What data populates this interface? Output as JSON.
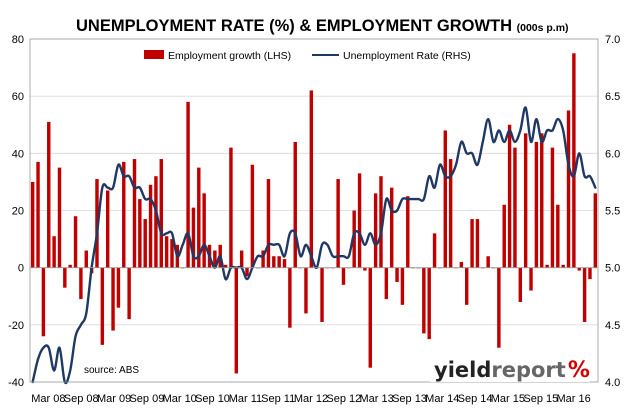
{
  "chart_data": {
    "type": "bar",
    "title": "UNEMPLOYMENT RATE (%) & EMPLOYMENT GROWTH",
    "title_suffix": "(000s p.m)",
    "source": "source: ABS",
    "legend": {
      "placement": "top-center"
    },
    "y_left": {
      "min": -40,
      "max": 80,
      "ticks": [
        "-40",
        "-20",
        "0",
        "20",
        "40",
        "60",
        "80"
      ]
    },
    "y_right": {
      "min": 4.0,
      "max": 7.0,
      "ticks": [
        "4.0",
        "4.5",
        "5.0",
        "5.5",
        "6.0",
        "6.5",
        "7.0"
      ]
    },
    "x_tick_labels": [
      "Mar 08",
      "Sep 08",
      "Mar 09",
      "Sep 09",
      "Mar 10",
      "Sep 10",
      "Mar 11",
      "Sep 11",
      "Mar 12",
      "Sep 12",
      "Mar 13",
      "Sep 13",
      "Mar 14",
      "Sep 14",
      "Mar 15",
      "Sep 15",
      "Mar 16"
    ],
    "series": [
      {
        "name": "Employment growth (LHS)",
        "type": "bar",
        "color": "#c00000",
        "values": [
          30,
          37,
          -24,
          51,
          11,
          35,
          -7,
          1,
          18,
          -11,
          6,
          -2,
          31,
          -27,
          27,
          -22,
          -14,
          37,
          -18,
          38,
          24,
          17,
          29,
          32,
          38,
          11,
          10,
          8,
          0,
          58,
          21,
          35,
          26,
          8,
          6,
          8,
          1,
          42,
          -37,
          6,
          -3,
          36,
          0,
          6,
          31,
          4,
          4,
          3,
          -21,
          44,
          0,
          -16,
          62,
          0,
          -19,
          0,
          0,
          31,
          -6,
          0,
          20,
          33,
          -1,
          -35,
          26,
          32,
          -11,
          28,
          -5,
          -13,
          25,
          0,
          0,
          -23,
          -25,
          12,
          0,
          48,
          38,
          0,
          2,
          -13,
          17,
          17,
          0,
          4,
          0,
          -28,
          22,
          50,
          42,
          -12,
          47,
          -8,
          44,
          47,
          1,
          42,
          22,
          1,
          55,
          75,
          -1,
          -19,
          -4,
          26
        ]
      },
      {
        "name": "Unemployment Rate (RHS)",
        "type": "line",
        "color": "#1f3864",
        "values": [
          4.0,
          4.2,
          4.3,
          4.3,
          4.1,
          4.3,
          4.0,
          4.1,
          4.4,
          4.5,
          4.6,
          5.0,
          5.3,
          5.7,
          5.7,
          5.7,
          5.9,
          5.8,
          5.8,
          5.7,
          5.7,
          5.6,
          5.6,
          5.5,
          5.3,
          5.3,
          5.3,
          5.1,
          5.2,
          5.3,
          5.1,
          5.1,
          5.2,
          5.1,
          5.0,
          5.1,
          4.9,
          5.0,
          5.0,
          5.0,
          4.9,
          5.0,
          5.1,
          5.1,
          5.2,
          5.2,
          5.2,
          5.1,
          5.3,
          5.3,
          5.1,
          5.2,
          5.1,
          5.0,
          5.2,
          5.2,
          5.1,
          5.1,
          5.1,
          5.1,
          5.3,
          5.3,
          5.2,
          5.3,
          5.2,
          5.3,
          5.6,
          5.5,
          5.5,
          5.6,
          5.6,
          5.6,
          5.6,
          5.6,
          5.8,
          5.7,
          5.9,
          5.8,
          5.8,
          5.9,
          6.1,
          6.0,
          6.0,
          5.9,
          6.1,
          6.3,
          6.1,
          6.2,
          6.1,
          6.2,
          6.1,
          6.2,
          6.4,
          6.1,
          6.3,
          6.1,
          6.2,
          6.2,
          6.3,
          6.2,
          5.9,
          5.8,
          6.0,
          5.8,
          5.8,
          5.7
        ]
      }
    ]
  },
  "branding": {
    "logo_part1": "yield",
    "logo_part2": "report",
    "logo_symbol": "%"
  }
}
